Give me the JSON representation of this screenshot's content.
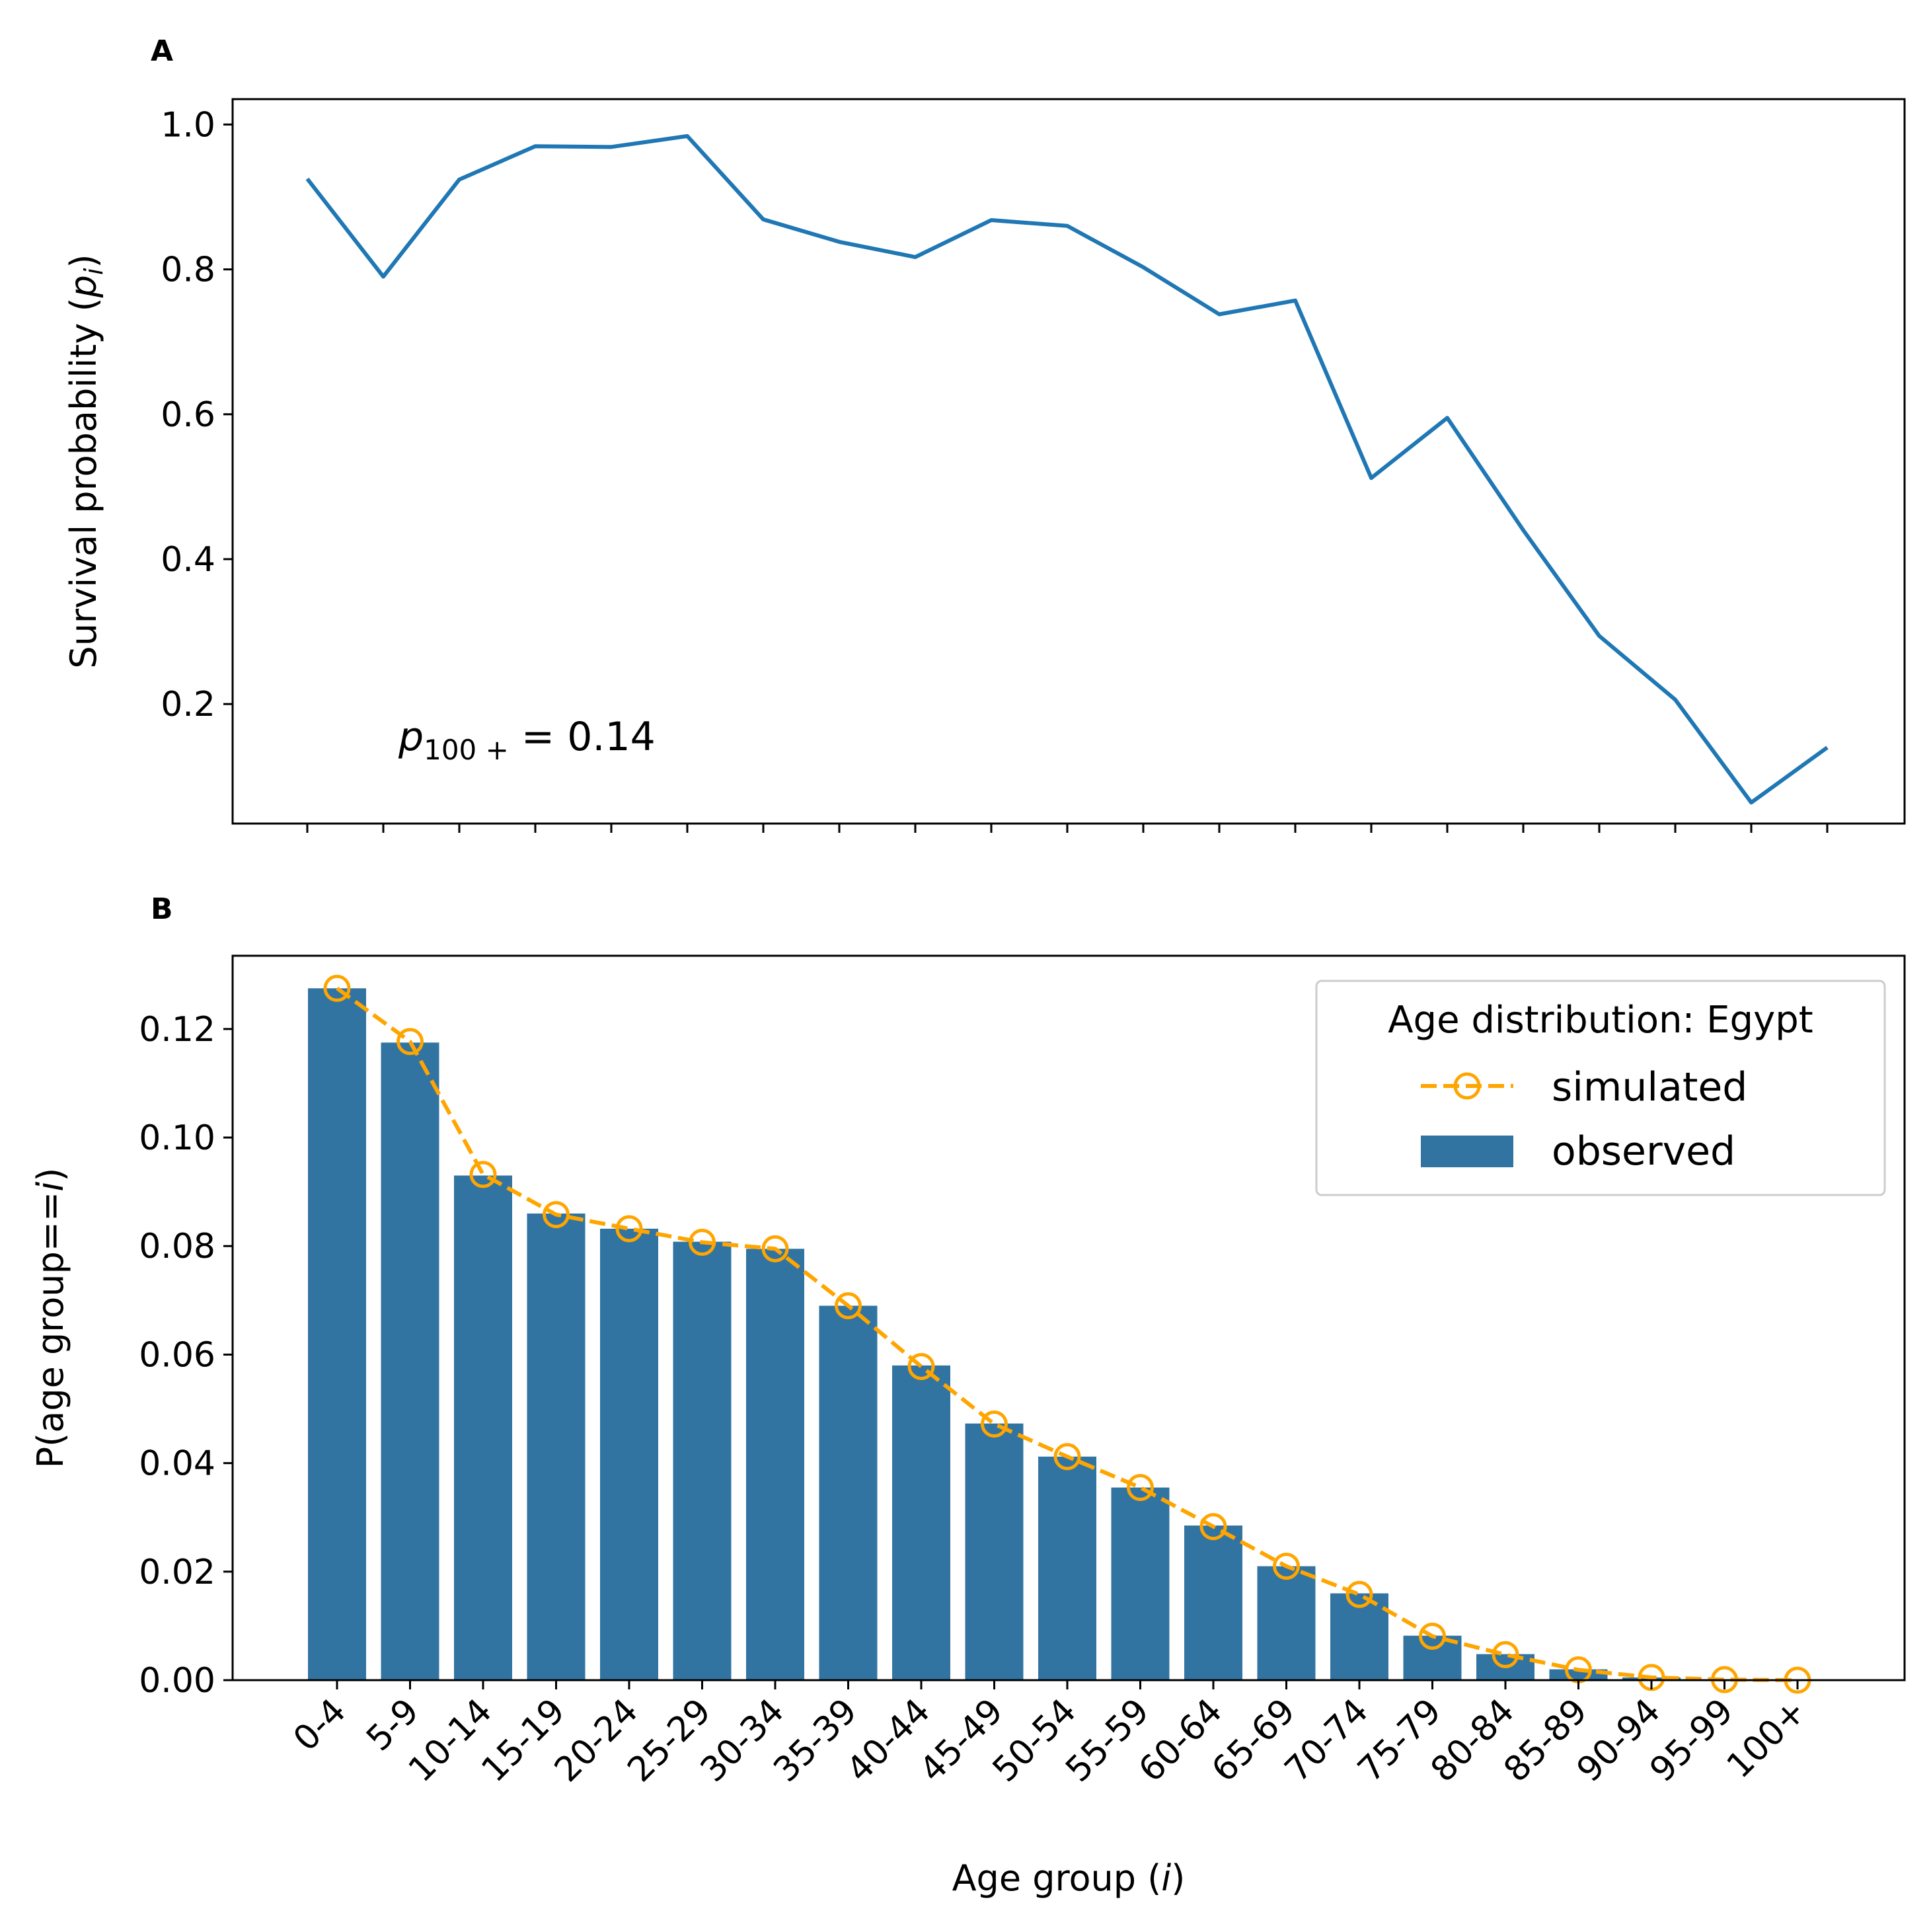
{
  "colors": {
    "line": "#1f77b4",
    "bar": "#3274a1",
    "simulated": "#ffa500",
    "axes": "#000000"
  },
  "chart_data": [
    {
      "panel": "A",
      "type": "line",
      "ylabel": "Survival probability (p_i)",
      "ylabel_parts": {
        "main": "Survival probability (",
        "var": "p",
        "sub": "i",
        "close": ")"
      },
      "annotation": {
        "var": "p",
        "sub": "100 +",
        "text": " = 0.14"
      },
      "x": [
        "0-4",
        "5-9",
        "10-14",
        "15-19",
        "20-24",
        "25-29",
        "30-34",
        "35-39",
        "40-44",
        "45-49",
        "50-54",
        "55-59",
        "60-64",
        "65-69",
        "70-74",
        "75-79",
        "80-84",
        "85-89",
        "90-94",
        "95-99",
        "100+"
      ],
      "values": [
        0.925,
        0.79,
        0.924,
        0.97,
        0.969,
        0.984,
        0.869,
        0.838,
        0.817,
        0.868,
        0.86,
        0.803,
        0.738,
        0.757,
        0.512,
        0.595,
        0.44,
        0.294,
        0.206,
        0.064,
        0.14
      ],
      "ylim": [
        0.035,
        1.035
      ],
      "yticks": [
        0.2,
        0.4,
        0.6,
        0.8,
        1.0
      ],
      "ytick_labels": [
        "0.2",
        "0.4",
        "0.6",
        "0.8",
        "1.0"
      ],
      "grid": false
    },
    {
      "panel": "B",
      "type": "bar",
      "xlabel": "Age group (i)",
      "xlabel_parts": {
        "main": "Age group (",
        "var": "i",
        "close": ")"
      },
      "ylabel": "P(age group==i)",
      "ylabel_parts": {
        "main": "P(age group==",
        "var": "i",
        "close": ")"
      },
      "categories": [
        "0-4",
        "5-9",
        "10-14",
        "15-19",
        "20-24",
        "25-29",
        "30-34",
        "35-39",
        "40-44",
        "45-49",
        "50-54",
        "55-59",
        "60-64",
        "65-69",
        "70-74",
        "75-79",
        "80-84",
        "85-89",
        "90-94",
        "95-99",
        "100+"
      ],
      "series": [
        {
          "name": "observed",
          "type": "bar",
          "values": [
            0.1275,
            0.1175,
            0.093,
            0.086,
            0.0832,
            0.0808,
            0.0795,
            0.069,
            0.058,
            0.0473,
            0.0412,
            0.0355,
            0.0285,
            0.021,
            0.016,
            0.0082,
            0.0048,
            0.002,
            0.0005,
            0.0001,
            0.0
          ]
        },
        {
          "name": "simulated",
          "type": "line",
          "values": [
            0.1275,
            0.1177,
            0.0932,
            0.0858,
            0.0832,
            0.0807,
            0.0795,
            0.069,
            0.0578,
            0.0472,
            0.0412,
            0.0355,
            0.0283,
            0.021,
            0.0158,
            0.0081,
            0.0047,
            0.0019,
            0.0005,
            0.0001,
            0.0
          ]
        }
      ],
      "ylim": [
        0,
        0.1335
      ],
      "yticks": [
        0,
        0.02,
        0.04,
        0.06,
        0.08,
        0.1,
        0.12
      ],
      "ytick_labels": [
        "0.00",
        "0.02",
        "0.04",
        "0.06",
        "0.08",
        "0.10",
        "0.12"
      ],
      "legend": {
        "title": "Age distribution: Egypt",
        "placement": "top-right",
        "entries": [
          "simulated",
          "observed"
        ]
      },
      "grid": false
    }
  ]
}
